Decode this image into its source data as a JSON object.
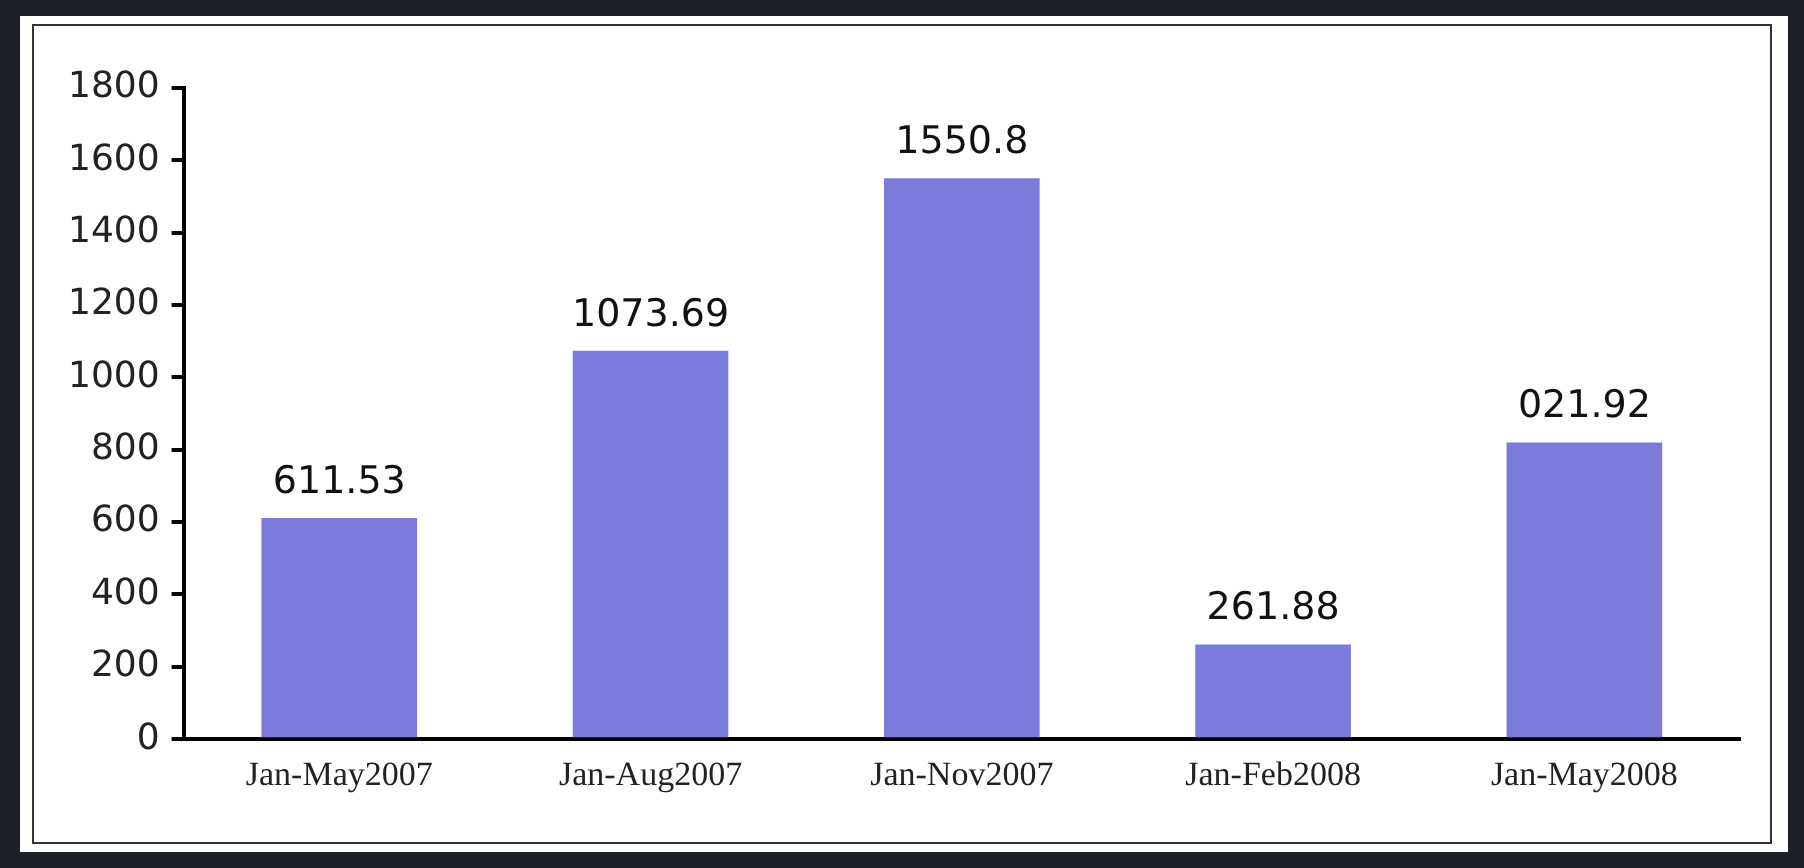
{
  "chart_data": {
    "type": "bar",
    "categories": [
      "Jan-May2007",
      "Jan-Aug2007",
      "Jan-Nov2007",
      "Jan-Feb2008",
      "Jan-May2008"
    ],
    "values": [
      611.53,
      1073.69,
      1550.8,
      261.88,
      820
    ],
    "value_labels": [
      "611.53",
      "1073.69",
      "1550.8",
      "261.88",
      null
    ],
    "annotations": [
      {
        "text": "021.92",
        "x": "Jan-May2008",
        "y": 820
      }
    ],
    "color": "#7b7bdc",
    "ylim": [
      0,
      1800
    ],
    "yticks": [
      0,
      200,
      400,
      600,
      800,
      1000,
      1200,
      1400,
      1600,
      1800
    ],
    "grid": false,
    "legend": false
  }
}
